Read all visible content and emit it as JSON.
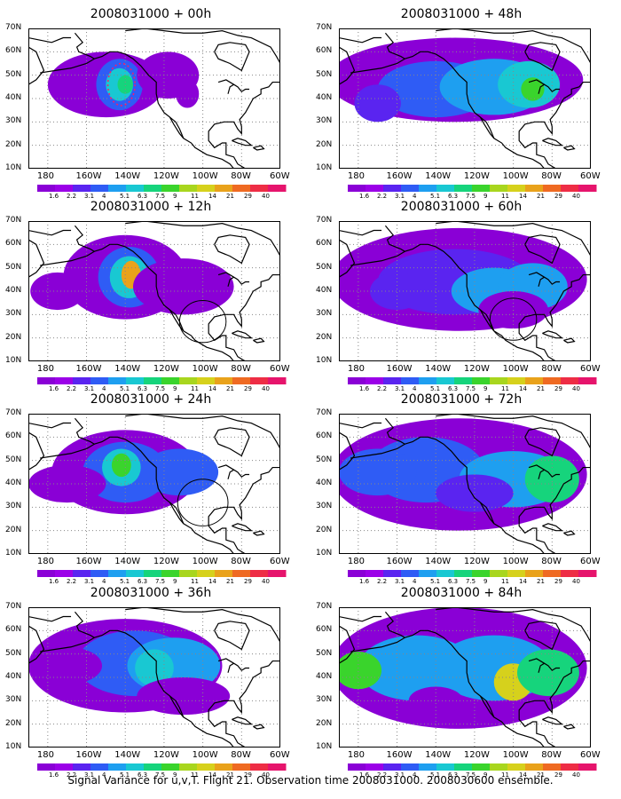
{
  "panels": [
    {
      "title": "2008031000 + 00h"
    },
    {
      "title": "2008031000 + 48h"
    },
    {
      "title": "2008031000 + 12h"
    },
    {
      "title": "2008031000 + 60h"
    },
    {
      "title": "2008031000 + 24h"
    },
    {
      "title": "2008031000 + 72h"
    },
    {
      "title": "2008031000 + 36h"
    },
    {
      "title": "2008031000 + 84h"
    }
  ],
  "y_ticks": [
    "70N",
    "60N",
    "50N",
    "40N",
    "30N",
    "20N",
    "10N"
  ],
  "x_ticks": [
    "180",
    "160W",
    "140W",
    "120W",
    "100W",
    "80W",
    "60W"
  ],
  "colorbar": {
    "labels": [
      "1.6",
      "2.2",
      "3.1",
      "4",
      "5.1",
      "6.3",
      "7.5",
      "9",
      "11",
      "14",
      "21",
      "29",
      "40"
    ],
    "colors": [
      "#8a00d6",
      "#9b00e8",
      "#5a24f0",
      "#2f5cf5",
      "#1e9ff0",
      "#19c8d2",
      "#16d47c",
      "#3ad42c",
      "#a8d61e",
      "#d6d11c",
      "#e9a21b",
      "#ef6a22",
      "#ee2d45",
      "#e6146c"
    ]
  },
  "footer": "Signal Variance for u,v,T. Flight 21. Observation time 2008031000. 2008030600 ensemble."
}
